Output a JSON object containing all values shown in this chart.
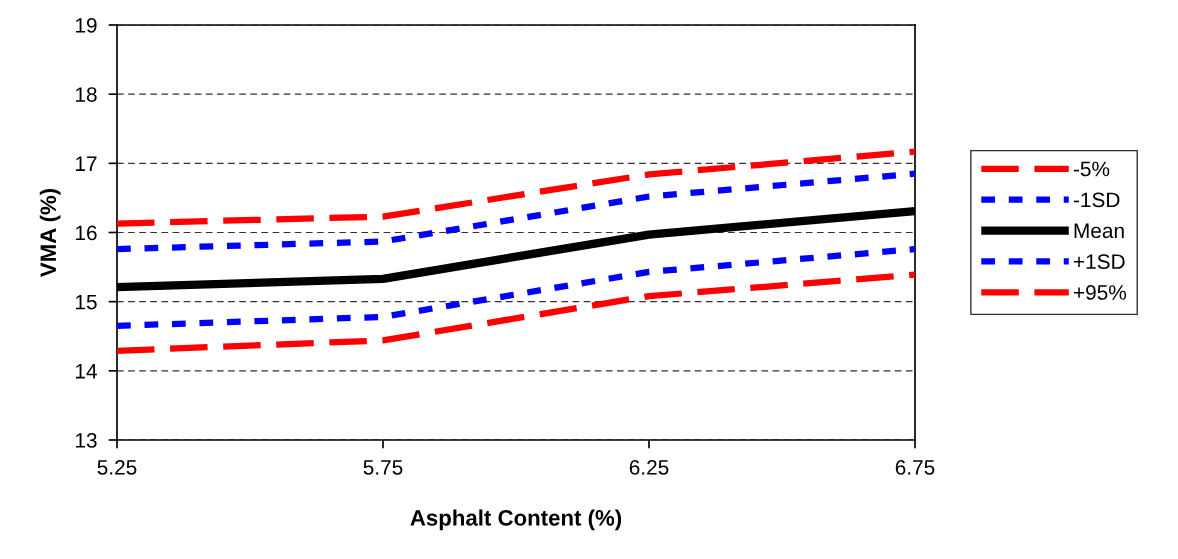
{
  "chart_data": {
    "type": "line",
    "xlabel": "Asphalt Content (%)",
    "ylabel": "VMA (%)",
    "x": [
      5.25,
      5.75,
      6.25,
      6.75
    ],
    "xlim": [
      5.25,
      6.75
    ],
    "xticks": [
      5.25,
      5.75,
      6.25,
      6.75
    ],
    "ylim": [
      13,
      19
    ],
    "yticks": [
      13,
      14,
      15,
      16,
      17,
      18,
      19
    ],
    "grid": "y",
    "legend": "right",
    "marker": "none",
    "series": [
      {
        "name": "-5%",
        "color": "#ff0000",
        "line_style": "dashed",
        "values": [
          16.13,
          16.23,
          16.84,
          17.17
        ]
      },
      {
        "name": "-1SD",
        "color": "#0000ff",
        "line_style": "dotted",
        "values": [
          15.76,
          15.87,
          16.52,
          16.85
        ]
      },
      {
        "name": "Mean",
        "color": "#000000",
        "line_style": "solid",
        "values": [
          15.21,
          15.33,
          15.97,
          16.31
        ]
      },
      {
        "name": "+1SD",
        "color": "#0000ff",
        "line_style": "dotted",
        "values": [
          14.65,
          14.78,
          15.43,
          15.76
        ]
      },
      {
        "name": "+95%",
        "color": "#ff0000",
        "line_style": "dashed",
        "values": [
          14.29,
          14.44,
          15.08,
          15.39
        ]
      }
    ]
  }
}
